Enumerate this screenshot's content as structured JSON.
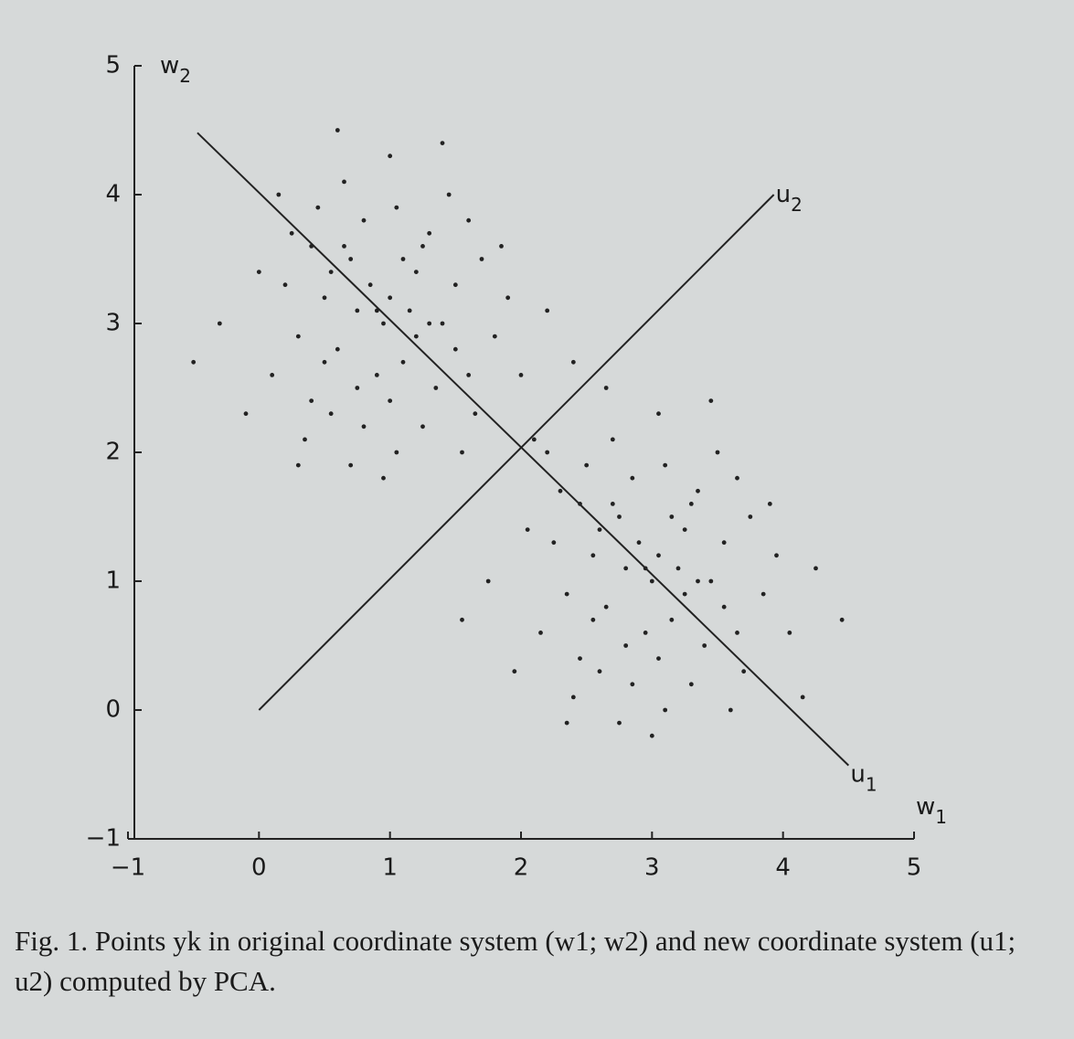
{
  "chart_data": {
    "type": "scatter",
    "xlabel": {
      "base": "w",
      "sub": "1"
    },
    "ylabel": {
      "base": "w",
      "sub": "2"
    },
    "xlim": [
      -1,
      5
    ],
    "ylim": [
      -1,
      5
    ],
    "xticks": [
      {
        "value": -1,
        "label": "−1"
      },
      0,
      1,
      2,
      3,
      4,
      5
    ],
    "yticks": [
      {
        "value": -1,
        "label": "−1"
      },
      0,
      1,
      2,
      3,
      4,
      5
    ],
    "series": [
      {
        "color": "#222222",
        "x": [
          0.9,
          1.2,
          0.6,
          1.1,
          0.7,
          1.4,
          0.5,
          1.0,
          0.8,
          1.6,
          0.3,
          1.3,
          0.95,
          0.4,
          1.5,
          0.75,
          1.25,
          0.2,
          1.8,
          0.65,
          1.05,
          0.55,
          1.7,
          0.1,
          1.35,
          0.85,
          1.15,
          0.45,
          1.9,
          0.35,
          1.0,
          0.6,
          1.45,
          -0.3,
          2.0,
          0.25,
          1.55,
          0.7,
          1.2,
          0.9,
          1.1,
          0.8,
          1.3,
          0.5,
          1.6,
          0.0,
          2.2,
          0.95,
          1.65,
          -0.5,
          0.15,
          1.4,
          2.1,
          0.55,
          1.05,
          0.75,
          1.25,
          0.4,
          1.85,
          -0.1,
          0.3,
          2.4,
          1.0,
          0.65,
          1.5
        ],
        "values": [
          3.1,
          3.4,
          2.8,
          2.7,
          3.5,
          3.0,
          3.2,
          2.4,
          3.8,
          2.6,
          2.9,
          3.7,
          3.0,
          3.6,
          3.3,
          2.5,
          2.2,
          3.3,
          2.9,
          4.1,
          3.9,
          2.3,
          3.5,
          2.6,
          2.5,
          3.3,
          3.1,
          3.9,
          3.2,
          2.1,
          4.3,
          4.5,
          4.0,
          3.0,
          2.6,
          3.7,
          2.0,
          1.9,
          2.9,
          2.6,
          3.5,
          2.2,
          3.0,
          2.7,
          3.8,
          3.4,
          3.1,
          1.8,
          2.3,
          2.7,
          4.0,
          4.4,
          2.1,
          3.4,
          2.0,
          3.1,
          3.6,
          2.4,
          3.6,
          2.3,
          1.9,
          2.7,
          3.2,
          3.6,
          2.8
        ]
      },
      {
        "color": "#222222",
        "x": [
          2.95,
          3.25,
          2.65,
          3.15,
          2.75,
          3.45,
          2.55,
          3.05,
          2.85,
          3.65,
          2.35,
          3.35,
          3.0,
          2.45,
          3.55,
          2.8,
          3.3,
          2.25,
          3.85,
          2.7,
          3.1,
          2.6,
          3.75,
          2.15,
          3.4,
          2.9,
          3.2,
          2.5,
          3.95,
          2.4,
          3.05,
          2.65,
          3.5,
          1.75,
          4.05,
          2.3,
          3.6,
          2.75,
          3.25,
          2.95,
          3.15,
          2.85,
          3.35,
          2.55,
          3.65,
          2.05,
          4.25,
          3.0,
          3.7,
          1.55,
          2.2,
          3.45,
          4.15,
          2.6,
          3.1,
          2.8,
          3.3,
          2.45,
          3.9,
          1.95,
          2.35,
          4.45,
          3.05,
          2.7,
          3.55
        ],
        "values": [
          1.1,
          1.4,
          0.8,
          0.7,
          1.5,
          1.0,
          1.2,
          0.4,
          1.8,
          0.6,
          0.9,
          1.7,
          1.0,
          1.6,
          1.3,
          0.5,
          0.2,
          1.3,
          0.9,
          2.1,
          1.9,
          0.3,
          1.5,
          0.6,
          0.5,
          1.3,
          1.1,
          1.9,
          1.2,
          0.1,
          2.3,
          2.5,
          2.0,
          1.0,
          0.6,
          1.7,
          0.0,
          -0.1,
          0.9,
          0.6,
          1.5,
          0.2,
          1.0,
          0.7,
          1.8,
          1.4,
          1.1,
          -0.2,
          0.3,
          0.7,
          2.0,
          2.4,
          0.1,
          1.4,
          0.0,
          1.1,
          1.6,
          0.4,
          1.6,
          0.3,
          -0.1,
          0.7,
          1.2,
          1.6,
          0.8
        ]
      }
    ],
    "lines": [
      {
        "label": {
          "base": "u",
          "sub": "1"
        },
        "x": [
          -0.47,
          4.5
        ],
        "values": [
          4.48,
          -0.43
        ]
      },
      {
        "label": {
          "base": "u",
          "sub": "2"
        },
        "x": [
          0,
          3.93
        ],
        "values": [
          0,
          4.0
        ]
      }
    ],
    "caption": "Fig. 1.  Points yk in original coordinate system (w1; w2) and new coordinate system (u1; u2) computed by PCA."
  }
}
